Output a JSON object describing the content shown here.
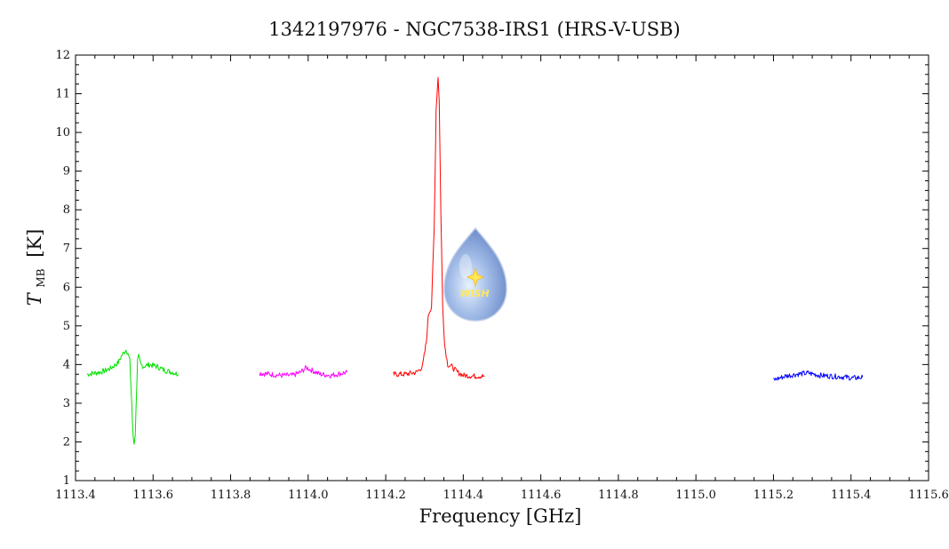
{
  "chart_data": {
    "type": "line",
    "title": "1342197976 - NGC7538-IRS1 (HRS-V-USB)",
    "xlabel": "Frequency [GHz]",
    "ylabel_main": "T",
    "ylabel_sub": "MB",
    "ylabel_unit": "[K]",
    "xlim": [
      1113.4,
      1115.6
    ],
    "ylim": [
      1,
      12
    ],
    "x_ticks": [
      1113.4,
      1113.6,
      1113.8,
      1114.0,
      1114.2,
      1114.4,
      1114.6,
      1114.8,
      1115.0,
      1115.2,
      1115.4,
      1115.6
    ],
    "x_tick_labels": [
      "1113.4",
      "1113.6",
      "1113.8",
      "1114.0",
      "1114.2",
      "1114.4",
      "1114.6",
      "1114.8",
      "1115.0",
      "1115.2",
      "1115.4",
      "1115.6"
    ],
    "y_ticks": [
      1,
      2,
      3,
      4,
      5,
      6,
      7,
      8,
      9,
      10,
      11,
      12
    ],
    "y_tick_labels": [
      "1",
      "2",
      "3",
      "4",
      "5",
      "6",
      "7",
      "8",
      "9",
      "10",
      "11",
      "12"
    ],
    "logo_text": "WISH",
    "series": [
      {
        "color": "#00e000",
        "x": [
          1113.43,
          1113.45,
          1113.47,
          1113.49,
          1113.51,
          1113.52,
          1113.53,
          1113.535,
          1113.54,
          1113.545,
          1113.548,
          1113.551,
          1113.554,
          1113.557,
          1113.56,
          1113.563,
          1113.568,
          1113.575,
          1113.59,
          1113.61,
          1113.63,
          1113.65,
          1113.665
        ],
        "y": [
          3.75,
          3.78,
          3.82,
          3.9,
          4.05,
          4.25,
          4.38,
          4.3,
          4.1,
          3.0,
          2.2,
          1.95,
          2.2,
          3.2,
          4.1,
          4.2,
          4.0,
          3.95,
          4.0,
          3.95,
          3.85,
          3.8,
          3.75
        ]
      },
      {
        "color": "#ff00ff",
        "x": [
          1113.875,
          1113.9,
          1113.93,
          1113.96,
          1113.98,
          1113.995,
          1114.01,
          1114.03,
          1114.06,
          1114.1
        ],
        "y": [
          3.78,
          3.75,
          3.72,
          3.72,
          3.8,
          3.92,
          3.85,
          3.75,
          3.72,
          3.8
        ]
      },
      {
        "color": "#ff0000",
        "x": [
          1114.22,
          1114.25,
          1114.28,
          1114.295,
          1114.305,
          1114.31,
          1114.318,
          1114.325,
          1114.33,
          1114.335,
          1114.338,
          1114.342,
          1114.347,
          1114.352,
          1114.36,
          1114.37,
          1114.385,
          1114.4,
          1114.43,
          1114.455
        ],
        "y": [
          3.75,
          3.75,
          3.8,
          3.95,
          4.6,
          5.3,
          5.5,
          7.5,
          10.6,
          11.45,
          10.8,
          8.0,
          5.5,
          4.5,
          4.0,
          3.95,
          3.8,
          3.72,
          3.7,
          3.7
        ]
      },
      {
        "color": "#0000ff",
        "x": [
          1115.2,
          1115.23,
          1115.26,
          1115.29,
          1115.32,
          1115.35,
          1115.38,
          1115.405,
          1115.43
        ],
        "y": [
          3.6,
          3.7,
          3.75,
          3.78,
          3.72,
          3.7,
          3.68,
          3.65,
          3.67
        ]
      }
    ]
  }
}
